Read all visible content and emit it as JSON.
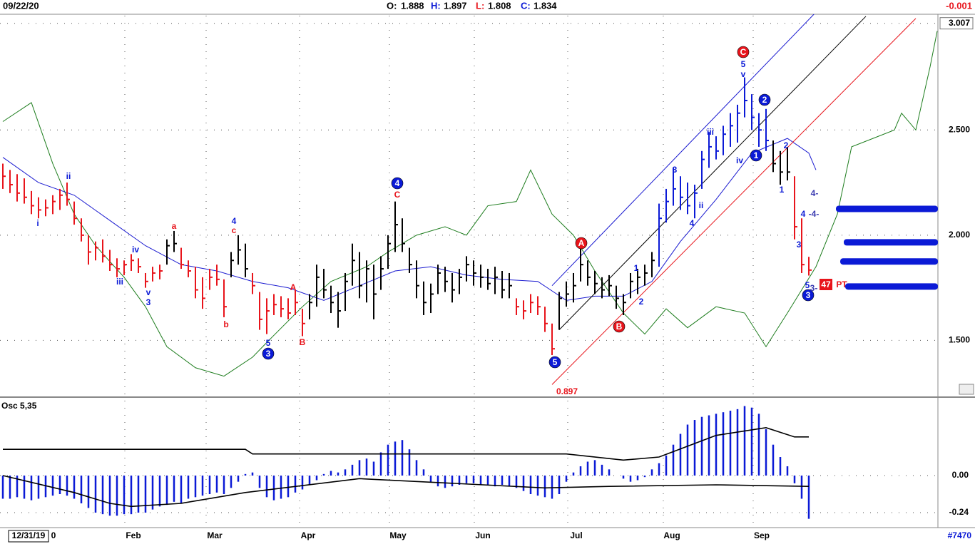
{
  "header": {
    "date": "09/22/20",
    "open_label": "O:",
    "open": 1.888,
    "high_label": "H:",
    "high": 1.897,
    "low_label": "L:",
    "low": 1.808,
    "close_label": "C:",
    "close": 1.834,
    "change": -0.001
  },
  "chart_data": [
    {
      "type": "ohlc",
      "ylim": [
        1.237,
        3.05
      ],
      "yticks": [
        3.007,
        {
          "value": 2.5,
          "label": "2.500"
        },
        {
          "value": 2,
          "label": "2.000"
        },
        {
          "value": 1.5,
          "label": "1.500"
        }
      ],
      "grid": true,
      "segments": [
        {
          "color": "#e8141b",
          "high": [
            2.34,
            2.31,
            2.29,
            2.27,
            2.21,
            2.18,
            2.17,
            2.19,
            2.22,
            2.25,
            2.16,
            2.08,
            2.0,
            1.97,
            1.98,
            1.93,
            1.89,
            1.88,
            1.91,
            1.89,
            1.82,
            1.85,
            1.86
          ],
          "low": [
            2.22,
            2.2,
            2.16,
            2.15,
            2.1,
            2.08,
            2.09,
            2.1,
            2.12,
            2.14,
            2.05,
            1.97,
            1.86,
            1.88,
            1.87,
            1.83,
            1.8,
            1.81,
            1.83,
            1.82,
            1.75,
            1.78,
            1.79
          ],
          "close": [
            2.28,
            2.24,
            2.2,
            2.18,
            2.14,
            2.12,
            2.13,
            2.16,
            2.19,
            2.17,
            2.08,
            2.0,
            1.92,
            1.94,
            1.9,
            1.86,
            1.84,
            1.86,
            1.88,
            1.85,
            1.78,
            1.82,
            1.83
          ]
        },
        {
          "color": "#000000",
          "high": [
            1.98,
            2.02
          ],
          "low": [
            1.86,
            1.92
          ],
          "close": [
            1.95,
            1.96
          ]
        },
        {
          "color": "#e8141b",
          "high": [
            1.94,
            1.88,
            1.85,
            1.8,
            1.84,
            1.86,
            1.79
          ],
          "low": [
            1.84,
            1.8,
            1.7,
            1.65,
            1.74,
            1.76,
            1.61
          ],
          "close": [
            1.86,
            1.83,
            1.74,
            1.7,
            1.8,
            1.79,
            1.66
          ]
        },
        {
          "color": "#000000",
          "high": [
            1.92,
            2.0,
            1.96
          ],
          "low": [
            1.8,
            1.86,
            1.8
          ],
          "close": [
            1.88,
            1.93,
            1.84
          ]
        },
        {
          "color": "#e8141b",
          "high": [
            1.82,
            1.73,
            1.7,
            1.72,
            1.71,
            1.7,
            1.74,
            1.65
          ],
          "low": [
            1.72,
            1.55,
            1.53,
            1.62,
            1.61,
            1.6,
            1.62,
            1.52
          ],
          "close": [
            1.76,
            1.6,
            1.64,
            1.67,
            1.65,
            1.63,
            1.68,
            1.58
          ]
        },
        {
          "color": "#000000",
          "high": [
            1.72,
            1.86,
            1.84,
            1.76,
            1.73,
            1.82,
            1.96,
            1.92,
            1.88,
            1.86,
            1.9,
            2.0,
            2.16,
            2.08,
            1.94,
            1.88,
            1.78,
            1.77,
            1.86,
            1.85,
            1.82,
            1.84,
            1.9,
            1.88,
            1.86,
            1.84,
            1.85,
            1.83,
            1.82
          ],
          "low": [
            1.6,
            1.66,
            1.7,
            1.63,
            1.56,
            1.64,
            1.76,
            1.7,
            1.68,
            1.6,
            1.74,
            1.84,
            1.92,
            1.92,
            1.82,
            1.7,
            1.62,
            1.63,
            1.72,
            1.73,
            1.68,
            1.72,
            1.78,
            1.76,
            1.75,
            1.74,
            1.72,
            1.7,
            1.7
          ],
          "close": [
            1.68,
            1.8,
            1.74,
            1.68,
            1.64,
            1.78,
            1.88,
            1.76,
            1.84,
            1.72,
            1.84,
            1.96,
            2.05,
            1.96,
            1.86,
            1.76,
            1.68,
            1.72,
            1.82,
            1.78,
            1.74,
            1.8,
            1.86,
            1.82,
            1.8,
            1.77,
            1.8,
            1.74,
            1.76
          ]
        },
        {
          "color": "#e8141b",
          "high": [
            1.7,
            1.69,
            1.72,
            1.71,
            1.66,
            1.58
          ],
          "low": [
            1.62,
            1.6,
            1.63,
            1.62,
            1.54,
            1.43
          ],
          "close": [
            1.66,
            1.64,
            1.68,
            1.66,
            1.58,
            1.46
          ]
        },
        {
          "color": "#000000",
          "high": [
            1.73,
            1.78,
            1.82,
            1.95,
            1.88,
            1.83,
            1.8,
            1.81,
            1.76,
            1.72,
            1.82,
            1.84,
            1.86,
            1.92
          ],
          "low": [
            1.55,
            1.66,
            1.68,
            1.78,
            1.76,
            1.72,
            1.7,
            1.71,
            1.65,
            1.62,
            1.7,
            1.72,
            1.76,
            1.8
          ],
          "close": [
            1.7,
            1.72,
            1.76,
            1.86,
            1.8,
            1.77,
            1.74,
            1.76,
            1.7,
            1.68,
            1.78,
            1.8,
            1.82,
            1.88
          ]
        },
        {
          "color": "#0b1ad6",
          "high": [
            2.15,
            2.22,
            2.32,
            2.28,
            2.25,
            2.24,
            2.4,
            2.49,
            2.47,
            2.52,
            2.58,
            2.62,
            2.75,
            2.67,
            2.58,
            2.6
          ],
          "low": [
            1.85,
            2.06,
            2.14,
            2.12,
            2.1,
            2.08,
            2.22,
            2.32,
            2.36,
            2.38,
            2.42,
            2.44,
            2.56,
            2.5,
            2.42,
            2.4
          ],
          "close": [
            2.08,
            2.16,
            2.22,
            2.18,
            2.14,
            2.2,
            2.36,
            2.42,
            2.4,
            2.48,
            2.52,
            2.58,
            2.64,
            2.56,
            2.5,
            2.45
          ]
        },
        {
          "color": "#000000",
          "high": [
            2.45,
            2.4,
            2.42
          ],
          "low": [
            2.3,
            2.24,
            2.26
          ],
          "close": [
            2.34,
            2.3,
            2.3
          ]
        },
        {
          "color": "#e8141b",
          "high": [
            2.28,
            2.08,
            1.897
          ],
          "low": [
            1.98,
            1.82,
            1.808
          ],
          "close": [
            2.04,
            1.86,
            1.834
          ]
        }
      ],
      "overlays": [
        {
          "color": "#1e7d1e",
          "index": [
            0,
            4,
            7,
            10,
            13,
            17,
            20,
            23,
            27,
            31,
            35,
            37,
            42,
            46,
            51,
            54,
            58,
            62,
            65,
            68,
            72,
            74,
            77,
            80,
            83,
            87,
            90,
            93,
            96,
            100,
            104,
            107,
            110,
            114,
            117,
            119,
            122,
            125,
            126,
            128,
            130,
            131
          ],
          "values": [
            2.54,
            2.63,
            2.34,
            2.1,
            1.95,
            1.8,
            1.66,
            1.47,
            1.37,
            1.33,
            1.42,
            1.49,
            1.66,
            1.78,
            1.85,
            1.92,
            2.0,
            2.04,
            2.0,
            2.14,
            2.16,
            2.31,
            2.1,
            2.0,
            1.83,
            1.63,
            1.53,
            1.65,
            1.56,
            1.66,
            1.63,
            1.47,
            1.63,
            1.85,
            2.1,
            2.42,
            2.46,
            2.5,
            2.58,
            2.5,
            2.8,
            2.97
          ]
        },
        {
          "color": "#1a1ad0",
          "index": [
            0,
            5,
            10,
            15,
            20,
            25,
            30,
            35,
            40,
            45,
            50,
            55,
            60,
            65,
            70,
            75,
            79,
            83,
            87,
            91,
            95,
            100,
            105,
            110,
            113,
            114
          ],
          "values": [
            2.37,
            2.25,
            2.19,
            2.07,
            1.95,
            1.86,
            1.83,
            1.78,
            1.75,
            1.69,
            1.76,
            1.83,
            1.85,
            1.81,
            1.79,
            1.78,
            1.69,
            1.71,
            1.71,
            1.78,
            1.97,
            2.17,
            2.39,
            2.46,
            2.39,
            2.31
          ]
        },
        {
          "color": "#1a1ad0",
          "index": [
            77,
            114
          ],
          "values": [
            1.76,
            3.06
          ]
        },
        {
          "color": "#000000",
          "index": [
            78,
            121
          ],
          "values": [
            1.55,
            3.04
          ]
        },
        {
          "color": "#e8141b",
          "index": [
            77,
            128
          ],
          "values": [
            1.29,
            3.03
          ]
        }
      ],
      "levels": {
        "color": "#0b1ad6",
        "values": [
          2.125,
          1.966,
          1.875,
          1.756
        ]
      },
      "annotations": [
        {
          "text": "i",
          "color": "#0b1ad6"
        },
        {
          "text": "ii",
          "color": "#0b1ad6"
        },
        {
          "text": "iii",
          "color": "#0b1ad6"
        },
        {
          "text": "iv",
          "color": "#0b1ad6"
        },
        {
          "text": "v",
          "color": "#0b1ad6"
        },
        {
          "text": "3",
          "color": "#0b1ad6"
        },
        {
          "text": "a",
          "color": "#e8141b"
        },
        {
          "text": "4",
          "color": "#0b1ad6"
        },
        {
          "text": "c",
          "color": "#e8141b"
        },
        {
          "text": "b",
          "color": "#e8141b"
        },
        {
          "text": "A",
          "color": "#e8141b"
        },
        {
          "text": "5",
          "color": "#0b1ad6"
        },
        {
          "text": "3",
          "color": "#0b1ad6",
          "circled": true
        },
        {
          "text": "B",
          "color": "#e8141b"
        },
        {
          "text": "4",
          "color": "#0b1ad6",
          "circled": true
        },
        {
          "text": "C",
          "color": "#e8141b"
        },
        {
          "text": "5",
          "color": "#0b1ad6",
          "circled": true
        },
        {
          "text": "A",
          "color": "#e8141b",
          "circled": true
        },
        {
          "text": "B",
          "color": "#e8141b",
          "circled": true
        },
        {
          "text": "1",
          "color": "#0b1ad6"
        },
        {
          "text": "2",
          "color": "#0b1ad6"
        },
        {
          "text": "3",
          "color": "#0b1ad6"
        },
        {
          "text": "iii",
          "color": "#0b1ad6"
        },
        {
          "text": "ii",
          "color": "#0b1ad6"
        },
        {
          "text": "4",
          "color": "#0b1ad6"
        },
        {
          "text": "iv",
          "color": "#0b1ad6"
        },
        {
          "text": "C",
          "color": "#e8141b",
          "circled": true
        },
        {
          "text": "5",
          "color": "#0b1ad6"
        },
        {
          "text": "v",
          "color": "#0b1ad6"
        },
        {
          "text": "2",
          "color": "#0b1ad6",
          "circled": true
        },
        {
          "text": "1",
          "color": "#0b1ad6",
          "circled": true
        },
        {
          "text": "2",
          "color": "#0b1ad6"
        },
        {
          "text": "1",
          "color": "#0b1ad6"
        },
        {
          "text": "4",
          "color": "#0b1ad6"
        },
        {
          "text": "3",
          "color": "#0b1ad6"
        },
        {
          "text": "5",
          "color": "#0b1ad6"
        },
        {
          "text": "3",
          "color": "#0b1ad6",
          "circled": true
        },
        {
          "text": "4-",
          "color": "#3a3ab0"
        },
        {
          "text": "-4-",
          "color": "#3a3ab0"
        },
        {
          "text": "3-",
          "color": "#3a3ab0"
        },
        {
          "text": "0.897",
          "color": "#e8141b"
        },
        {
          "text": "47",
          "color": "#e8141b",
          "boxed": true
        },
        {
          "text": "PT",
          "color": "#e8141b"
        }
      ]
    },
    {
      "type": "oscillator",
      "title": "Osc 5,35",
      "ylim": [
        -0.337,
        0.494
      ],
      "yticks": [
        {
          "value": 0,
          "label": "0.00"
        },
        -0.24
      ],
      "color": "#0b1ad6",
      "values": [
        -0.15,
        -0.15,
        -0.14,
        -0.15,
        -0.16,
        -0.15,
        -0.14,
        -0.13,
        -0.12,
        -0.13,
        -0.15,
        -0.18,
        -0.21,
        -0.24,
        -0.25,
        -0.26,
        -0.26,
        -0.25,
        -0.25,
        -0.24,
        -0.24,
        -0.22,
        -0.2,
        -0.19,
        -0.17,
        -0.18,
        -0.15,
        -0.14,
        -0.13,
        -0.12,
        -0.11,
        -0.12,
        -0.08,
        -0.04,
        0.01,
        0.02,
        -0.08,
        -0.14,
        -0.16,
        -0.15,
        -0.14,
        -0.11,
        -0.09,
        -0.06,
        -0.03,
        0.01,
        0.03,
        0.02,
        0.04,
        0.07,
        0.1,
        0.11,
        0.09,
        0.15,
        0.2,
        0.22,
        0.23,
        0.17,
        0.1,
        0.04,
        -0.04,
        -0.07,
        -0.08,
        -0.07,
        -0.06,
        -0.05,
        -0.05,
        -0.06,
        -0.06,
        -0.07,
        -0.06,
        -0.07,
        -0.08,
        -0.1,
        -0.12,
        -0.13,
        -0.14,
        -0.15,
        -0.12,
        -0.04,
        0.02,
        0.06,
        0.09,
        0.1,
        0.07,
        0.04,
        0.0,
        -0.02,
        -0.04,
        -0.03,
        -0.01,
        0.04,
        0.08,
        0.13,
        0.2,
        0.27,
        0.33,
        0.36,
        0.38,
        0.39,
        0.4,
        0.41,
        0.42,
        0.43,
        0.45,
        0.44,
        0.4,
        0.3,
        0.2,
        0.12,
        0.06,
        -0.05,
        -0.15,
        -0.28
      ],
      "lines": [
        {
          "color": "#000000",
          "index": [
            0,
            34,
            35,
            60,
            79,
            87,
            92,
            100,
            107,
            111,
            113
          ],
          "values": [
            0.17,
            0.17,
            0.14,
            0.14,
            0.14,
            0.1,
            0.12,
            0.26,
            0.31,
            0.25,
            0.25
          ]
        },
        {
          "color": "#000000",
          "index": [
            0,
            10,
            15,
            18,
            25,
            34,
            50,
            76,
            85,
            100,
            113
          ],
          "values": [
            0,
            -0.11,
            -0.18,
            -0.2,
            -0.18,
            -0.11,
            -0.02,
            -0.08,
            -0.07,
            -0.06,
            -0.07
          ]
        }
      ]
    }
  ],
  "x_axis": {
    "labels": [
      "12/31/19",
      "0",
      "Feb",
      "Mar",
      "Apr",
      "May",
      "Jun",
      "Jul",
      "Aug",
      "Sep"
    ]
  },
  "footer": {
    "id": "#7470"
  }
}
